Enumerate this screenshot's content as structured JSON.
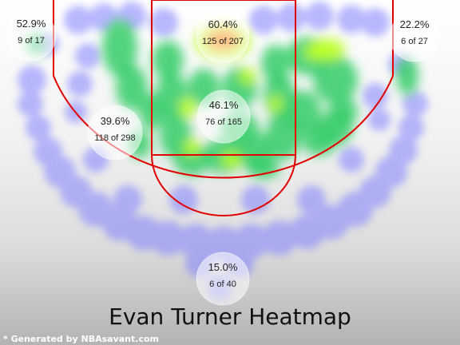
{
  "chart_data": {
    "type": "heatmap",
    "title": "Evan Turner Heatmap",
    "credit": "* Generated by NBAsavant.com",
    "colors": {
      "court_lines": "#e20000",
      "cold": "#7f7fff",
      "mid": "#33cc66",
      "warm": "#bbff22",
      "hot": "#ff6a00"
    },
    "zones": [
      {
        "zone": "left-corner-three",
        "pct": "52.9%",
        "made": 9,
        "attempts": 17,
        "frac": "9 of 17"
      },
      {
        "zone": "restricted-area",
        "pct": "60.4%",
        "made": 125,
        "attempts": 207,
        "frac": "125 of 207"
      },
      {
        "zone": "right-corner-three",
        "pct": "22.2%",
        "made": 6,
        "attempts": 27,
        "frac": "6 of 27"
      },
      {
        "zone": "left-mid-range",
        "pct": "39.6%",
        "made": 118,
        "attempts": 298,
        "frac": "118 of 298"
      },
      {
        "zone": "paint-non-ra",
        "pct": "46.1%",
        "made": 76,
        "attempts": 165,
        "frac": "76 of 165"
      },
      {
        "zone": "above-break-three",
        "pct": "15.0%",
        "made": 6,
        "attempts": 40,
        "frac": "6 of 40"
      }
    ]
  }
}
